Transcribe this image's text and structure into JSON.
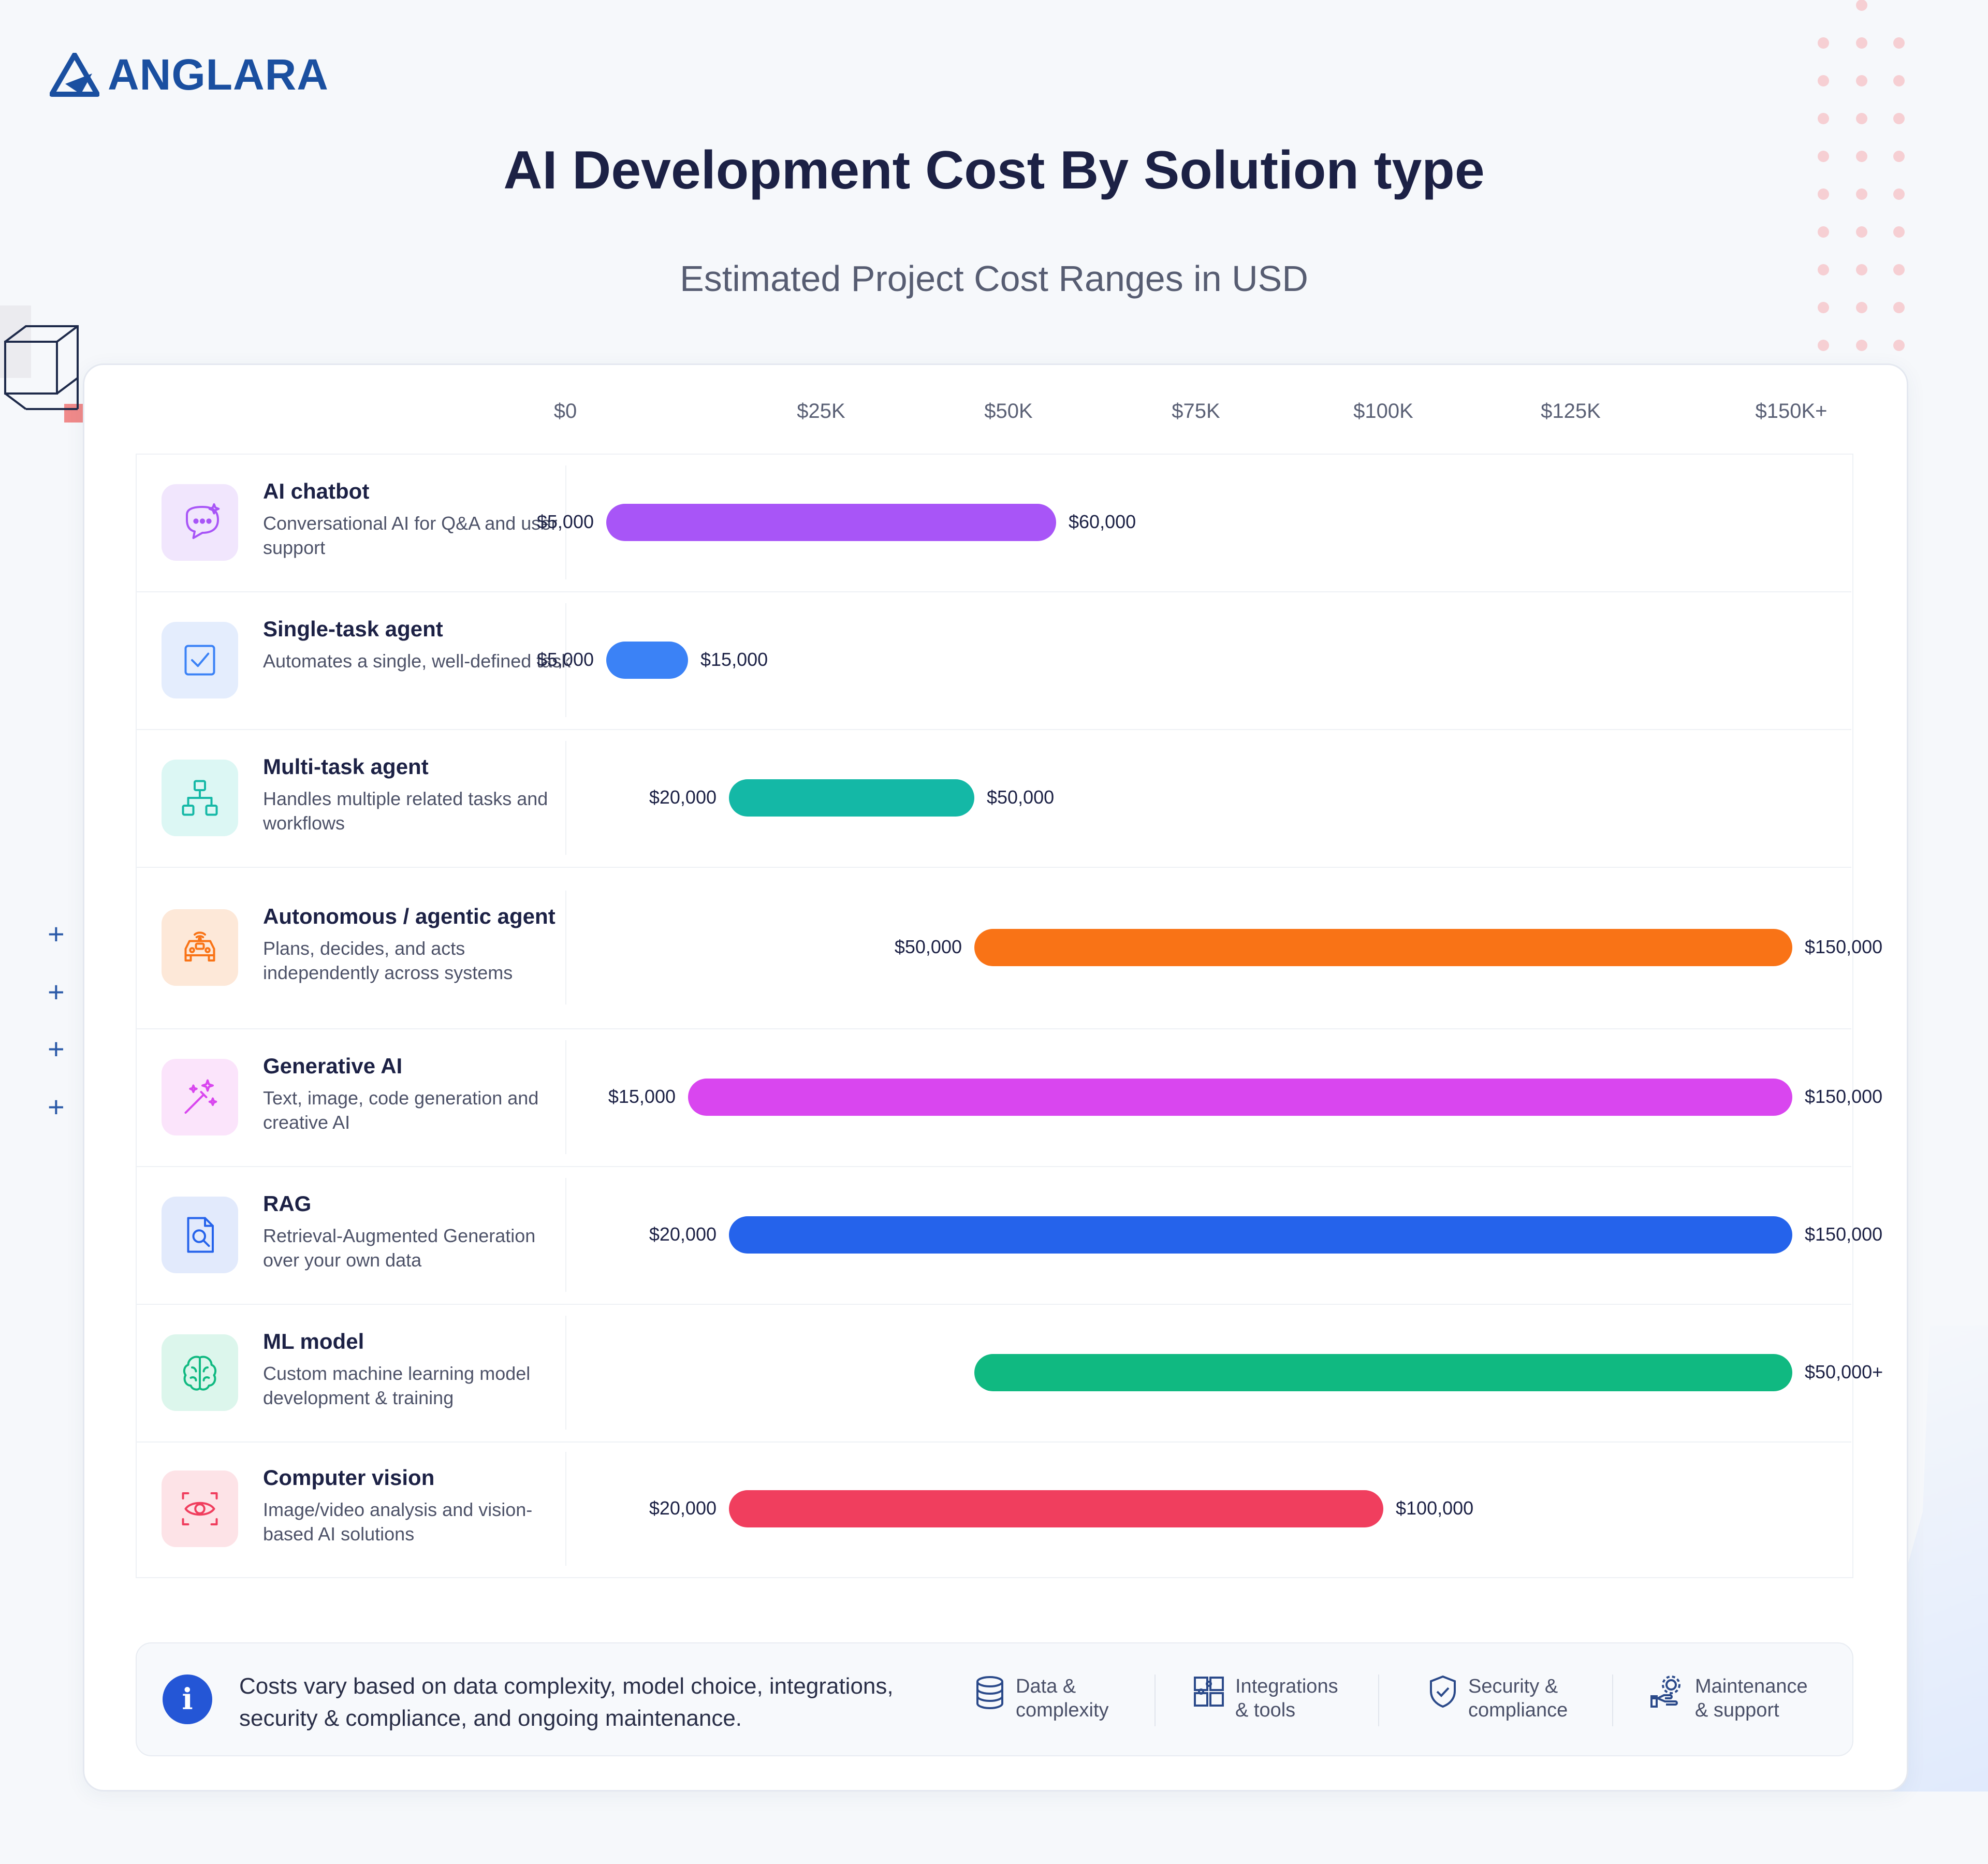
{
  "brand": {
    "name": "ANGLARA"
  },
  "header": {
    "title": "AI Development Cost By Solution type",
    "subtitle": "Estimated Project Cost Ranges in USD"
  },
  "chart_data": {
    "type": "bar",
    "orientation": "horizontal-range",
    "title": "AI Development Cost By Solution type",
    "subtitle": "Estimated Project Cost Ranges in USD",
    "x_ticks": [
      "$0",
      "$25K",
      "$50K",
      "$75K",
      "$100K",
      "$125K",
      "$150K+"
    ],
    "x_tick_values": [
      0,
      25000,
      50000,
      75000,
      100000,
      125000,
      150000
    ],
    "xlim": [
      0,
      150000
    ],
    "grid": false,
    "rows": [
      {
        "name": "AI chatbot",
        "desc": "Conversational AI for Q&A and user support",
        "min": 5000,
        "max": 60000,
        "min_label": "$5,000",
        "max_label": "$60,000",
        "color": "#a855f7",
        "tile_bg": "#f1e6fd",
        "icon": "chat-sparkle-icon"
      },
      {
        "name": "Single-task agent",
        "desc": "Automates a single, well-defined task",
        "min": 5000,
        "max": 15000,
        "min_label": "$5,000",
        "max_label": "$15,000",
        "color": "#3b82f6",
        "tile_bg": "#e4edfd",
        "icon": "checkbox-icon"
      },
      {
        "name": "Multi-task agent",
        "desc": "Handles multiple related tasks and workflows",
        "min": 20000,
        "max": 50000,
        "min_label": "$20,000",
        "max_label": "$50,000",
        "color": "#14b8a6",
        "tile_bg": "#dcf7f4",
        "icon": "hierarchy-icon"
      },
      {
        "name": "Autonomous / agentic agent",
        "desc": "Plans, decides, and acts independently across systems",
        "min": 50000,
        "max": 150000,
        "min_label": "$50,000",
        "max_label": "$150,000",
        "color": "#f97316",
        "tile_bg": "#fde8d8",
        "icon": "autonomous-car-icon"
      },
      {
        "name": "Generative AI",
        "desc": "Text, image, code generation and creative AI",
        "min": 15000,
        "max": 150000,
        "min_label": "$15,000",
        "max_label": "$150,000",
        "color": "#d946ef",
        "tile_bg": "#fbe4fb",
        "icon": "magic-wand-icon"
      },
      {
        "name": "RAG",
        "desc": "Retrieval-Augmented Generation over your own data",
        "min": 20000,
        "max": 150000,
        "min_label": "$20,000",
        "max_label": "$150,000",
        "color": "#2563eb",
        "tile_bg": "#e2eafc",
        "icon": "document-search-icon"
      },
      {
        "name": "ML model",
        "desc": "Custom machine learning model development & training",
        "min": 50000,
        "max": 150000,
        "min_label": "",
        "max_label": "$50,000+",
        "color": "#10b981",
        "tile_bg": "#dcf6ec",
        "icon": "brain-icon"
      },
      {
        "name": "Computer vision",
        "desc": "Image/video analysis and vision-based AI solutions",
        "min": 20000,
        "max": 100000,
        "min_label": "$20,000",
        "max_label": "$100,000",
        "color": "#f03e5e",
        "tile_bg": "#fde3e7",
        "icon": "eye-scan-icon"
      }
    ]
  },
  "footer": {
    "note": "Costs vary based on data complexity, model choice, integrations, security & compliance, and ongoing maintenance.",
    "factors": [
      {
        "label": "Data & complexity",
        "icon": "database-icon"
      },
      {
        "label": "Integrations & tools",
        "icon": "puzzle-icon"
      },
      {
        "label": "Security & compliance",
        "icon": "shield-check-icon"
      },
      {
        "label": "Maintenance & support",
        "icon": "hand-gear-icon"
      }
    ]
  },
  "colors": {
    "accent": "#1a4fa0",
    "info": "#2456d6"
  }
}
